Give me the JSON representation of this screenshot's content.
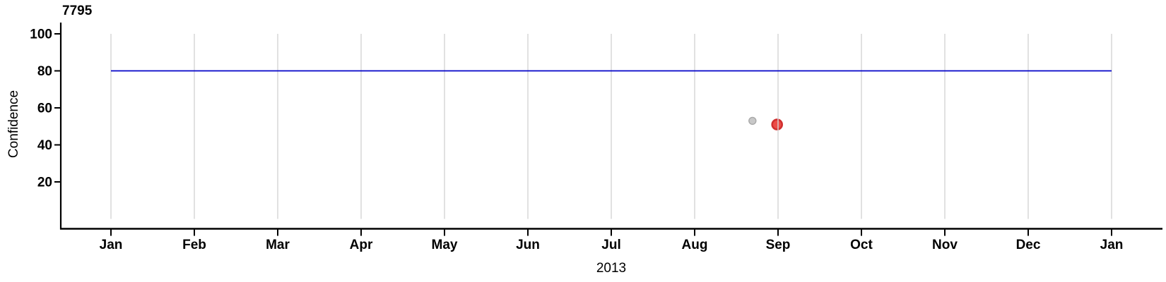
{
  "chart_data": {
    "type": "scatter",
    "title": "7795",
    "ylabel": "Confidence",
    "xlabel": "2013",
    "ylim": [
      0,
      100
    ],
    "yticks": [
      100,
      80,
      60,
      40,
      20
    ],
    "xticks": [
      "Jan",
      "Feb",
      "Mar",
      "Apr",
      "May",
      "Jun",
      "Jul",
      "Aug",
      "Sep",
      "Oct",
      "Nov",
      "Dec",
      "Jan"
    ],
    "grid": {
      "vertical_monthly": true,
      "horizontal": false,
      "color": "#d4d4d4"
    },
    "reference_line": {
      "value": 80,
      "color": "#0101c8",
      "x_start_month": 0,
      "x_end_month": 12
    },
    "points": [
      {
        "name": "gray-point",
        "date": "2013-08-22",
        "day_of_year": 234,
        "confidence": 53,
        "fill": "#c8c8c8",
        "stroke": "#a8a8a8",
        "radius": 5,
        "stroke_width": 1.4
      },
      {
        "name": "red-point",
        "date": "2013-08-31",
        "day_of_year": 243,
        "confidence": 51,
        "fill": "#ec4b47",
        "stroke": "#d02f2f",
        "radius": 7,
        "stroke_width": 2.6
      }
    ],
    "axis_color": "#000000",
    "text_color": "#000000",
    "legend": "none"
  }
}
